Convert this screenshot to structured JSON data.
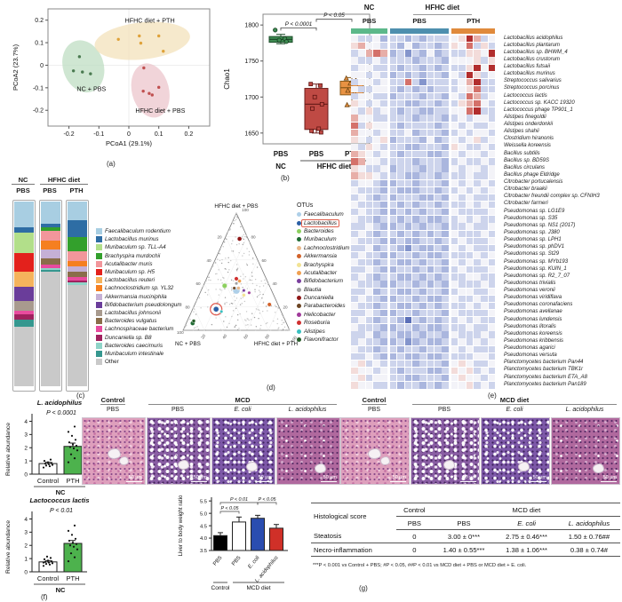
{
  "panel_labels": {
    "a": "(a)",
    "b": "(b)",
    "c": "(c)",
    "d": "(d)",
    "e": "(e)",
    "f": "(f)",
    "g": "(g)"
  },
  "chart_data": [
    {
      "id": "pcoa",
      "type": "scatter",
      "xlabel": "PCoA1 (29.1%)",
      "ylabel": "PCoA2 (23.7%)",
      "xticks": [
        -0.2,
        -0.1,
        0,
        0.1,
        0.2
      ],
      "yticks": [
        -0.2,
        -0.1,
        0,
        0.1,
        0.2
      ],
      "xlim": [
        -0.27,
        0.27
      ],
      "ylim": [
        -0.27,
        0.25
      ],
      "groups": [
        {
          "name": "NC + PBS",
          "color": "#4a7a50",
          "ellipse_color": "#bcdcc0",
          "ellipse": {
            "cx": -0.152,
            "cy": -0.005,
            "rx": 0.068,
            "ry": 0.118,
            "rot": -18
          },
          "points": [
            [
              -0.165,
              0.038
            ],
            [
              -0.185,
              -0.025
            ],
            [
              -0.155,
              -0.03
            ],
            [
              -0.128,
              -0.038
            ]
          ],
          "label_pos": [
            -0.125,
            -0.115
          ]
        },
        {
          "name": "HFHC diet + PBS",
          "color": "#c05050",
          "ellipse_color": "#ecc4cb",
          "ellipse": {
            "cx": 0.072,
            "cy": -0.112,
            "rx": 0.062,
            "ry": 0.122,
            "rot": -14
          },
          "points": [
            [
              0.05,
              -0.012
            ],
            [
              0.048,
              -0.115
            ],
            [
              0.068,
              -0.125
            ],
            [
              0.1,
              -0.098
            ],
            [
              0.078,
              -0.132
            ]
          ],
          "label_pos": [
            0.105,
            -0.21
          ]
        },
        {
          "name": "HFHC diet + PTH",
          "color": "#dfa23a",
          "ellipse_color": "#f2e0b8",
          "ellipse": {
            "cx": 0.045,
            "cy": 0.108,
            "rx": 0.16,
            "ry": 0.082,
            "rot": -6
          },
          "points": [
            [
              -0.035,
              0.115
            ],
            [
              0.035,
              0.13
            ],
            [
              0.04,
              0.098
            ],
            [
              0.1,
              0.13
            ],
            [
              0.115,
              0.062
            ]
          ],
          "label_pos": [
            0.07,
            0.188
          ]
        }
      ]
    },
    {
      "id": "chao1",
      "type": "box",
      "ylabel": "Chao1",
      "yticks": [
        1650,
        1700,
        1750,
        1800
      ],
      "ylim": [
        1635,
        1815
      ],
      "categories": [
        "PBS",
        "PBS",
        "PTH"
      ],
      "group_axis": [
        {
          "label": "NC"
        },
        {
          "label": "HFHC diet"
        }
      ],
      "boxes": [
        {
          "fill": "#3f8b52",
          "stroke": "#1e4d2b",
          "marker": "circle",
          "q1": 1776,
          "median": 1780,
          "q3": 1784,
          "lo": 1774,
          "hi": 1787,
          "points": [
            1793,
            1781,
            1779,
            1777
          ]
        },
        {
          "fill": "#bf4a44",
          "stroke": "#6e1f1c",
          "marker": "square",
          "q1": 1655,
          "median": 1690,
          "q3": 1712,
          "lo": 1650,
          "hi": 1718,
          "points": [
            1718,
            1716,
            1700,
            1690,
            1684,
            1656,
            1653,
            1651
          ]
        },
        {
          "fill": "#e89243",
          "stroke": "#8a5a1a",
          "marker": "triangle",
          "q1": 1703,
          "median": 1713,
          "q3": 1722,
          "lo": 1688,
          "hi": 1727,
          "points": [
            1726,
            1723,
            1719,
            1712,
            1709,
            1706,
            1689
          ]
        }
      ],
      "annotations": [
        {
          "label": "P < 0.0001",
          "from": 0,
          "to": 1,
          "y": 1796
        },
        {
          "label": "P < 0.05",
          "from": 1,
          "to": 2,
          "y": 1808
        }
      ]
    },
    {
      "id": "taxa_stack",
      "type": "bar",
      "stacked": true,
      "group_top": [
        "NC",
        "HFHC diet"
      ],
      "col_sub": [
        "PBS",
        "PBS",
        "PTH"
      ],
      "taxa": [
        {
          "label": "Faecalibaculum rodentium",
          "color": "#a8cee2"
        },
        {
          "label": "Lactobacillus murinus",
          "color": "#2e6da4"
        },
        {
          "label": "Muribaculum sp. TLL-A4",
          "color": "#b2df8a"
        },
        {
          "label": "Brachyspira murdochii",
          "color": "#33a02c"
        },
        {
          "label": "Acutalibacter muris",
          "color": "#f2969b"
        },
        {
          "label": "Muribaculum sp. H5",
          "color": "#e3211c"
        },
        {
          "label": "Lactobacillus reuteri",
          "color": "#f5b35c"
        },
        {
          "label": "Lachnoclostridium sp. YL32",
          "color": "#f57f20"
        },
        {
          "label": "Akkermansia muciniphila",
          "color": "#c5b0d5"
        },
        {
          "label": "Bifidobacterium pseudolongum",
          "color": "#6a3d9a"
        },
        {
          "label": "Lactobacillus johnsonii",
          "color": "#a89a8e"
        },
        {
          "label": "Bacteroides vulgatus",
          "color": "#8a6d4a"
        },
        {
          "label": "Lachnospiraceae bacterium",
          "color": "#e84b9e"
        },
        {
          "label": "Duncaniella sp. B8",
          "color": "#a0215e"
        },
        {
          "label": "Bacteroides caecimuris",
          "color": "#8fd4c8"
        },
        {
          "label": "Muribaculum intestinale",
          "color": "#35978f"
        },
        {
          "label": "Other",
          "color": "#c9c9c9"
        }
      ],
      "values": [
        [
          14,
          3,
          11,
          0,
          0,
          10,
          8,
          0,
          0,
          8,
          5,
          0,
          2,
          3,
          0,
          4,
          32
        ],
        [
          12,
          2,
          0,
          2,
          5,
          0,
          0,
          5,
          5,
          0,
          0,
          3,
          2,
          0,
          1,
          1,
          62
        ],
        [
          10,
          9,
          0,
          8,
          5,
          0,
          0,
          3,
          3,
          0,
          0,
          3,
          2,
          1,
          1,
          0,
          55
        ]
      ]
    },
    {
      "id": "ternary",
      "type": "scatter",
      "legend_title": "OTUs",
      "vertex_labels": {
        "top": "HFHC diet + PBS",
        "left": "NC + PBS",
        "right": "HFHC diet + PTH"
      },
      "edge_ticks": [
        20,
        40,
        60,
        80
      ],
      "corner_tick": "100",
      "otus": [
        {
          "name": "Faecalibaculum",
          "color": "#aecfe8",
          "abc": [
            34,
            33,
            33
          ],
          "size": 8
        },
        {
          "name": "Lactobacillus",
          "color": "#2b5fa5",
          "abc": [
            18,
            60,
            22
          ],
          "size": 6,
          "circled": true
        },
        {
          "name": "Bacteroides",
          "color": "#8cd05e",
          "abc": [
            38,
            42,
            20
          ],
          "size": 5.5
        },
        {
          "name": "Muribaculum",
          "color": "#1f6b33",
          "abc": [
            6,
            88,
            6
          ],
          "size": 5
        },
        {
          "name": "Lachnoclostridium",
          "color": "#e9b78a",
          "abc": [
            36,
            30,
            34
          ],
          "size": 4
        },
        {
          "name": "Akkermansia",
          "color": "#d2622a",
          "abc": [
            22,
            8,
            70
          ],
          "size": 4.5
        },
        {
          "name": "Brachyspira",
          "color": "#f2e394",
          "abc": [
            30,
            28,
            42
          ],
          "size": 4
        },
        {
          "name": "Acutalibacter",
          "color": "#f0a050",
          "abc": [
            42,
            26,
            32
          ],
          "size": 4
        },
        {
          "name": "Bifidobacterium",
          "color": "#7a3f9e",
          "abc": [
            34,
            26,
            40
          ],
          "size": 3.5
        },
        {
          "name": "Blautia",
          "color": "#a0a0a0",
          "abc": [
            40,
            30,
            30
          ],
          "size": 3.5
        },
        {
          "name": "Duncaniella",
          "color": "#8f1616",
          "abc": [
            78,
            8,
            14
          ],
          "size": 5
        },
        {
          "name": "Parabacteroides",
          "color": "#6b4423",
          "abc": [
            36,
            34,
            30
          ],
          "size": 3.5
        },
        {
          "name": "Helicobacter",
          "color": "#a03a9a",
          "abc": [
            32,
            22,
            46
          ],
          "size": 3.5
        },
        {
          "name": "Roseburia",
          "color": "#d03030",
          "abc": [
            44,
            28,
            28
          ],
          "size": 4.5
        },
        {
          "name": "Alistipes",
          "color": "#38c0c0",
          "abc": [
            16,
            56,
            28
          ],
          "size": 3.5
        },
        {
          "name": "Flavonifractor",
          "color": "#265c28",
          "abc": [
            8,
            86,
            6
          ],
          "size": 4
        }
      ]
    },
    {
      "id": "heatmap",
      "type": "heatmap",
      "group_top": [
        "NC",
        "HFHC diet"
      ],
      "col_groups": [
        {
          "sub": "PBS",
          "color": "#5cb88a",
          "cols": 5
        },
        {
          "sub": "PBS",
          "color": "#4e8fae",
          "cols": 8
        },
        {
          "sub": "PTH",
          "color": "#e08a3c",
          "cols": 6
        }
      ],
      "palette": {
        "0": "#3f55a5",
        "1": "#5b6fb8",
        "2": "#8495cc",
        "3": "#aab6de",
        "4": "#cdd4ec",
        "5": "#f3f3f8",
        "6": "#f3dcda",
        "7": "#e7aea8",
        "8": "#d4716a",
        "9": "#b22e2e"
      },
      "rows": [
        "Lactobacillus acidophilus",
        "Lactobacillus plantarum",
        "Lactobacillus sp. BHWM_4",
        "Lactobacillus crustorum",
        "Lactobacillus futsaii",
        "Lactobacillus murinus",
        "Streptococcus salivarius",
        "Streptococcus porcinus",
        "Lactococcus lactis",
        "Lactococcus sp. KACC 19320",
        "Lactococcus phage TP901_1",
        "Alistipes finegoldii",
        "Alistipes onderdonkii",
        "Alistipes shahii",
        "Clostridium hiranonis",
        "Weissella koreensis",
        "Bacillus subtilis",
        "Bacillus sp. BD59S",
        "Bacillus circulans",
        "Bacillus phage Eldridge",
        "Citrobacter portucalensis",
        "Citrobacter braakii",
        "Citrobacter freundii complex sp. CFNIH3",
        "Citrobacter farmeri",
        "Pseudomonas sp. LG1E9",
        "Pseudomonas sp. S35",
        "Pseudomonas sp. NS1 (2017)",
        "Pseudomonas sp. J380",
        "Pseudomonas sp. LPH1",
        "Pseudomonas sp. phDV1",
        "Pseudomonas sp. St29",
        "Pseudomonas sp. MYb193",
        "Pseudomonas sp. KUIN_1",
        "Pseudomonas sp. R2_7_07",
        "Pseudomonas trivialis",
        "Pseudomonas veronii",
        "Pseudomonas viridiflava",
        "Pseudomonas coronafaciens",
        "Pseudomonas avellanae",
        "Pseudomonas lundensis",
        "Pseudomonas litoralis",
        "Pseudomonas koreensis",
        "Pseudomonas kribbensis",
        "Pseudomonas agarici",
        "Pseudomonas versuta",
        "Planctomycetes bacterium Pan44",
        "Planctomycetes bacterium TBK1r",
        "Planctomycetes bacterium ETA_A8",
        "Planctomycetes bacterium Pan189"
      ],
      "matrix": [
        "5445344343444569745",
        "6755443534434658464",
        "4578734243534446659",
        "5445444434443555646",
        "4554443443434446959",
        "5545434343443549645",
        "4554544842444457944",
        "5445543434344456844",
        "4554434443443548745",
        "6545444334434467854",
        "5464543443344558944",
        "7554444434443454554",
        "8465543444434545445",
        "7554544534443454554",
        "6545634443534545645",
        "5465444334443654454",
        "7654543444334545545",
        "8755444434443454454",
        "6544534443443545545",
        "7665444334434445445",
        "4554334434443545454",
        "5444343334434454545",
        "4543434443343545444",
        "5444343434434445454",
        "4544334343443544445",
        "5443443434334454544",
        "4454334343443445445",
        "4543443434343544454",
        "5444334334434454445",
        "4453443243343545444",
        "4544334434334444545",
        "5443443343443545454",
        "4454334434343454445",
        "4543443343434445544",
        "5444334434343544454",
        "4453443343443455445",
        "4544334434334544544",
        "5443443343434445454",
        "4454334434443544445",
        "4543443143434454544",
        "5444334434334445445",
        "4453443343443544454",
        "4544334234334454545",
        "5443443443443545444",
        "4454334334334444554",
        "5645444434443565445",
        "6554543444334656454",
        "5645544334443565545",
        "6554443443434556454"
      ]
    },
    {
      "id": "rel_ab_1",
      "type": "bar",
      "title": "L. acidophilus",
      "pvalue": "P < 0.0001",
      "ylabel": "Relative abundance",
      "yticks": [
        0,
        1,
        2,
        3,
        4
      ],
      "categories": [
        "Control",
        "PTH"
      ],
      "group": "NC",
      "values": [
        0.8,
        2.1
      ],
      "errors": [
        0.1,
        0.25
      ],
      "colors": [
        "#ffffff",
        "#4db24d"
      ],
      "points": [
        [
          0.5,
          0.6,
          0.65,
          0.7,
          0.75,
          0.8,
          0.85,
          0.9,
          1.0,
          1.1
        ],
        [
          0.9,
          1.2,
          1.5,
          1.8,
          1.95,
          2.05,
          2.15,
          2.25,
          2.4,
          2.6,
          2.9,
          3.2,
          3.6
        ]
      ]
    },
    {
      "id": "rel_ab_2",
      "type": "bar",
      "title": "Lactococcus lactis",
      "pvalue": "P < 0.01",
      "ylabel": "Relative abundance",
      "yticks": [
        0,
        1,
        2,
        3,
        4
      ],
      "categories": [
        "Control",
        "PTH"
      ],
      "group": "NC",
      "values": [
        0.75,
        2.15
      ],
      "errors": [
        0.1,
        0.22
      ],
      "colors": [
        "#ffffff",
        "#4db24d"
      ],
      "points": [
        [
          0.45,
          0.55,
          0.6,
          0.65,
          0.7,
          0.75,
          0.8,
          0.85,
          0.95,
          1.05,
          1.15,
          0.7
        ],
        [
          0.8,
          1.1,
          1.4,
          1.7,
          1.9,
          2.0,
          2.1,
          2.2,
          2.35,
          2.5,
          2.8,
          3.1,
          3.5
        ]
      ]
    },
    {
      "id": "liver_ratio",
      "type": "bar",
      "ylabel": "Liver to body weight ratio",
      "yticks": [
        3.5,
        4.0,
        4.5,
        5.0,
        5.5
      ],
      "ylim": [
        3.5,
        5.65
      ],
      "categories": [
        "PBS",
        "PBS",
        "E. coli",
        "L. acidophilus"
      ],
      "italic_cats": [
        false,
        false,
        true,
        true
      ],
      "values": [
        4.1,
        4.65,
        4.8,
        4.4
      ],
      "errors": [
        0.12,
        0.2,
        0.12,
        0.15
      ],
      "colors": [
        "#000000",
        "#ffffff",
        "#2a4db0",
        "#d03028"
      ],
      "group_axis": [
        {
          "label": "Control",
          "span": [
            0,
            0
          ]
        },
        {
          "label": "MCD diet",
          "span": [
            1,
            3
          ]
        }
      ],
      "annotations": [
        {
          "label": "P < 0.05",
          "from": 0,
          "to": 1,
          "level": 0
        },
        {
          "label": "P < 0.01",
          "from": 0,
          "to": 2,
          "level": 1
        },
        {
          "label": "P < 0.05",
          "from": 2,
          "to": 3,
          "level": 1
        }
      ]
    }
  ],
  "histology": {
    "left": {
      "control_header": "Control",
      "mcd_header": "MCD",
      "labels": [
        "PBS",
        "PBS",
        "E. coli",
        "L. acidophilus"
      ],
      "scalebar": "50 µm"
    },
    "right": {
      "control_header": "Control",
      "mcd_header": "MCD diet",
      "labels": [
        "PBS",
        "PBS",
        "E. coli",
        "L. acidophilus"
      ],
      "scalebar": "50 µm"
    }
  },
  "score_table": {
    "header_col": "Histological score",
    "control_header": "Control",
    "mcd_header": "MCD diet",
    "subheaders": [
      "PBS",
      "PBS",
      "E. coli",
      "L. acidophilus"
    ],
    "rows": [
      {
        "label": "Steatosis",
        "values": [
          "0",
          "3.00 ± 0***",
          "2.75 ± 0.46***",
          "1.50 ± 0.76##"
        ]
      },
      {
        "label": "Necro-inflammation",
        "values": [
          "0",
          "1.40 ± 0.55***",
          "1.38 ± 1.06***",
          "0.38 ± 0.74#"
        ]
      }
    ],
    "footnote": "***P < 0.001 vs Control + PBS; #P < 0.05, ##P < 0.01 vs MCD diet + PBS or MCD diet + E. coli."
  }
}
